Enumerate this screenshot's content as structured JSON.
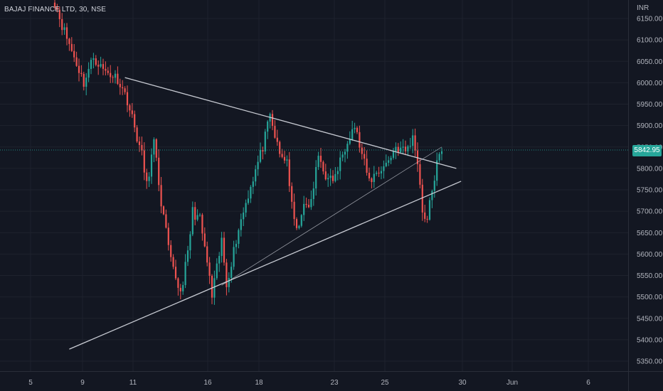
{
  "header": {
    "symbol_title": "BAJAJ FINANCE LTD, 30, NSE",
    "currency": "INR"
  },
  "last_price": {
    "label": "5842.95",
    "value": 5842.95
  },
  "colors": {
    "background": "#131722",
    "up": "#26a69a",
    "down": "#ef5350",
    "grid": "#1e222d",
    "axis_text": "#b2b5be",
    "trendline": "#d1d4dc"
  },
  "chart_data": {
    "type": "candlestick",
    "title": "BAJAJ FINANCE LTD, 30, NSE",
    "ylabel": "INR",
    "ylim": [
      5325,
      6175
    ],
    "grid": true,
    "y_ticks": [
      {
        "value": 6150,
        "label": "6150.00"
      },
      {
        "value": 6100,
        "label": "6100.00"
      },
      {
        "value": 6050,
        "label": "6050.00"
      },
      {
        "value": 6000,
        "label": "6000.00"
      },
      {
        "value": 5950,
        "label": "5950.00"
      },
      {
        "value": 5900,
        "label": "5900.00"
      },
      {
        "value": 5850,
        "label": "5850.00"
      },
      {
        "value": 5800,
        "label": "5800.00"
      },
      {
        "value": 5750,
        "label": "5750.00"
      },
      {
        "value": 5700,
        "label": "5700.00"
      },
      {
        "value": 5650,
        "label": "5650.00"
      },
      {
        "value": 5600,
        "label": "5600.00"
      },
      {
        "value": 5550,
        "label": "5550.00"
      },
      {
        "value": 5500,
        "label": "5500.00"
      },
      {
        "value": 5450,
        "label": "5450.00"
      },
      {
        "value": 5400,
        "label": "5400.00"
      },
      {
        "value": 5350,
        "label": "5350.00"
      }
    ],
    "x_ticks": [
      "5",
      "9",
      "11",
      "16",
      "18",
      "23",
      "25",
      "30",
      "Jun",
      "6"
    ],
    "price_path_anchors": [
      [
        0,
        6190
      ],
      [
        3,
        6135
      ],
      [
        8,
        6060
      ],
      [
        12,
        6000
      ],
      [
        16,
        6060
      ],
      [
        20,
        6030
      ],
      [
        26,
        6010
      ],
      [
        30,
        5960
      ],
      [
        36,
        5830
      ],
      [
        38,
        5760
      ],
      [
        41,
        5860
      ],
      [
        44,
        5720
      ],
      [
        48,
        5580
      ],
      [
        52,
        5510
      ],
      [
        55,
        5600
      ],
      [
        57,
        5700
      ],
      [
        60,
        5680
      ],
      [
        63,
        5580
      ],
      [
        65,
        5500
      ],
      [
        69,
        5630
      ],
      [
        71,
        5530
      ],
      [
        76,
        5660
      ],
      [
        81,
        5760
      ],
      [
        86,
        5850
      ],
      [
        89,
        5920
      ],
      [
        93,
        5830
      ],
      [
        96,
        5820
      ],
      [
        98,
        5710
      ],
      [
        100,
        5650
      ],
      [
        102,
        5700
      ],
      [
        106,
        5720
      ],
      [
        109,
        5830
      ],
      [
        113,
        5770
      ],
      [
        116,
        5780
      ],
      [
        121,
        5870
      ],
      [
        124,
        5900
      ],
      [
        127,
        5830
      ],
      [
        130,
        5770
      ],
      [
        133,
        5790
      ],
      [
        137,
        5810
      ],
      [
        141,
        5850
      ],
      [
        145,
        5840
      ],
      [
        148,
        5870
      ],
      [
        150,
        5820
      ],
      [
        152,
        5700
      ],
      [
        154,
        5680
      ],
      [
        156,
        5750
      ],
      [
        158,
        5810
      ],
      [
        160,
        5840
      ]
    ],
    "trendlines": [
      {
        "name": "upper-resistance",
        "from": {
          "bar": 29,
          "price": 6012
        },
        "to": {
          "bar": 166,
          "price": 5800
        }
      },
      {
        "name": "lower-support",
        "from": {
          "bar": 6,
          "price": 5378
        },
        "to": {
          "bar": 168,
          "price": 5770
        }
      },
      {
        "name": "inner-rising-line",
        "from": {
          "bar": 69,
          "price": 5527
        },
        "to": {
          "bar": 160,
          "price": 5850
        }
      }
    ]
  }
}
